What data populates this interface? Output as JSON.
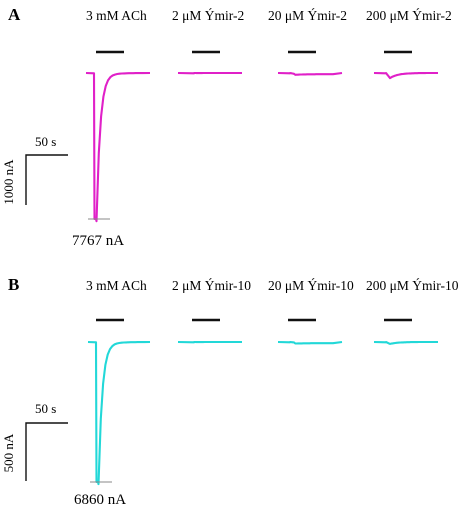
{
  "figure": {
    "background": "#ffffff"
  },
  "chart_data": [
    {
      "type": "line",
      "panel_label": "A",
      "color": "#e020c8",
      "application_bar_color": "#111111",
      "baseline_marker_color": "#888888",
      "conditions": [
        {
          "label": "3 mM ACh",
          "peak_nA": -7767,
          "peak_label": "7767 nA"
        },
        {
          "label": "2 μM Ýmir-2",
          "peak_nA": -5
        },
        {
          "label": "20 μM Ýmir-2",
          "peak_nA": -40
        },
        {
          "label": "200 μM Ýmir-2",
          "peak_nA": -270
        }
      ],
      "scale_bar": {
        "time_label": "50 s",
        "time_s": 50,
        "current_label": "1000 nA",
        "current_nA": 1000
      }
    },
    {
      "type": "line",
      "panel_label": "B",
      "color": "#22d8d8",
      "application_bar_color": "#111111",
      "baseline_marker_color": "#888888",
      "conditions": [
        {
          "label": "3 mM ACh",
          "peak_nA": -6860,
          "peak_label": "6860 nA"
        },
        {
          "label": "2 μM Ýmir-10",
          "peak_nA": -5
        },
        {
          "label": "20 μM Ýmir-10",
          "peak_nA": -20
        },
        {
          "label": "200 μM Ýmir-10",
          "peak_nA": -95
        }
      ],
      "scale_bar": {
        "time_label": "50 s",
        "time_s": 50,
        "current_label": "500 nA",
        "current_nA": 500
      }
    }
  ]
}
